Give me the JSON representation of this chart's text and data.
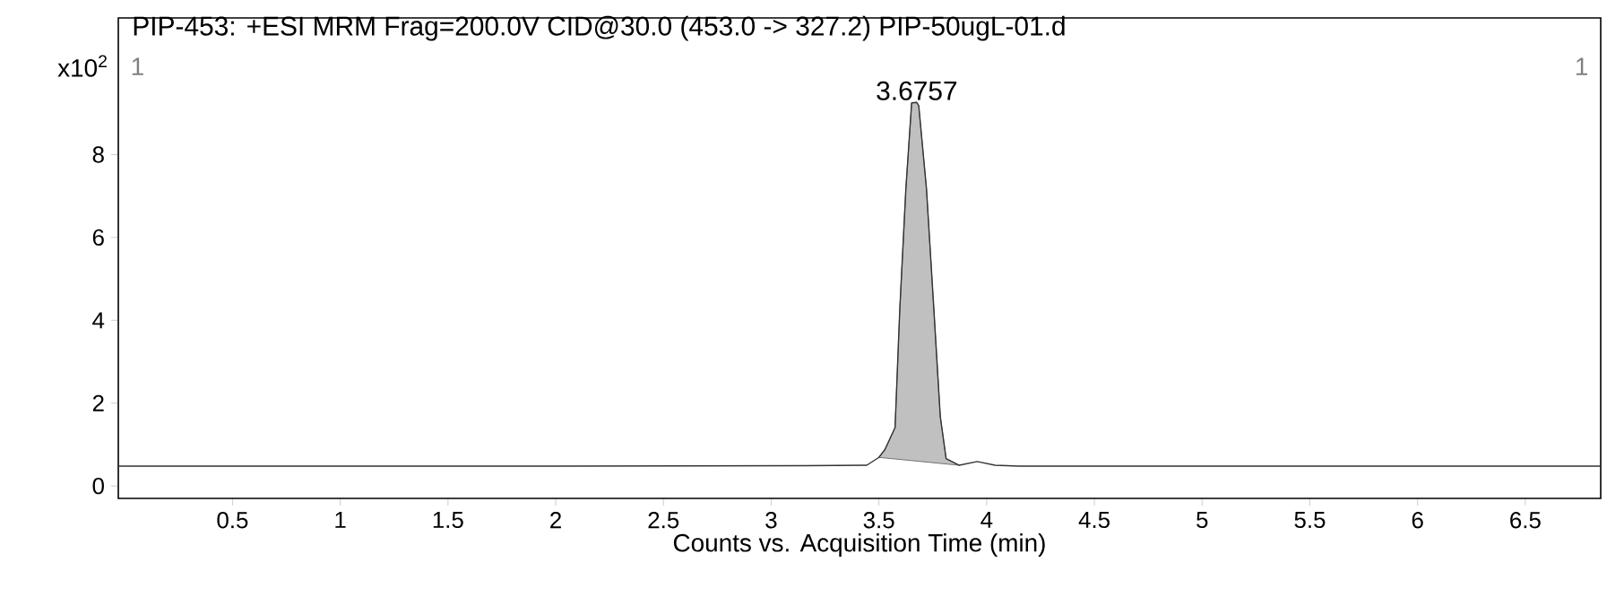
{
  "chart_data": {
    "type": "line",
    "title": "PIP-453: +ESI MRM Frag=200.0V CID@30.0 (453.0 -> 327.2) PIP-50ugL-01.d",
    "xlabel": "Counts vs. Acquisition Time (min)",
    "ylabel": "x10$^{2}$",
    "annotations": [
      {
        "text": "3.6757",
        "x": 3.6757,
        "y": 9.26
      },
      "1",
      "1"
    ],
    "series": [
      {
        "color": "#333333",
        "x": [
          -0.03,
          1.0,
          2.0,
          3.154,
          3.444,
          3.5,
          3.528,
          3.575,
          3.597,
          3.625,
          3.652,
          3.6757,
          3.685,
          3.721,
          3.755,
          3.785,
          3.812,
          3.873,
          3.956,
          4.039,
          4.15,
          5.0,
          6.0,
          6.85
        ],
        "values": [
          0.48,
          0.48,
          0.48,
          0.49,
          0.5,
          0.69,
          0.88,
          1.41,
          4.27,
          7.16,
          9.25,
          9.26,
          9.18,
          7.16,
          4.27,
          1.67,
          0.66,
          0.5,
          0.59,
          0.5,
          0.48,
          0.48,
          0.48,
          0.48
        ]
      },
      {
        "type": "area",
        "color": "#c0c0c0",
        "x": [
          3.5,
          3.528,
          3.575,
          3.597,
          3.625,
          3.652,
          3.6757,
          3.685,
          3.721,
          3.755,
          3.785,
          3.812,
          3.873
        ],
        "values": [
          0.69,
          0.88,
          1.41,
          4.27,
          7.16,
          9.25,
          9.26,
          9.18,
          7.16,
          4.27,
          1.67,
          0.66,
          0.5
        ]
      }
    ],
    "xlim": [
      -0.03,
      6.85
    ],
    "ylim": [
      -0.3,
      11.3
    ],
    "xticks": [
      0.5,
      1,
      1.5,
      2,
      2.5,
      3,
      3.5,
      4,
      4.5,
      5,
      5.5,
      6,
      6.5
    ],
    "yticks": [
      0,
      2,
      4,
      6,
      8
    ]
  }
}
